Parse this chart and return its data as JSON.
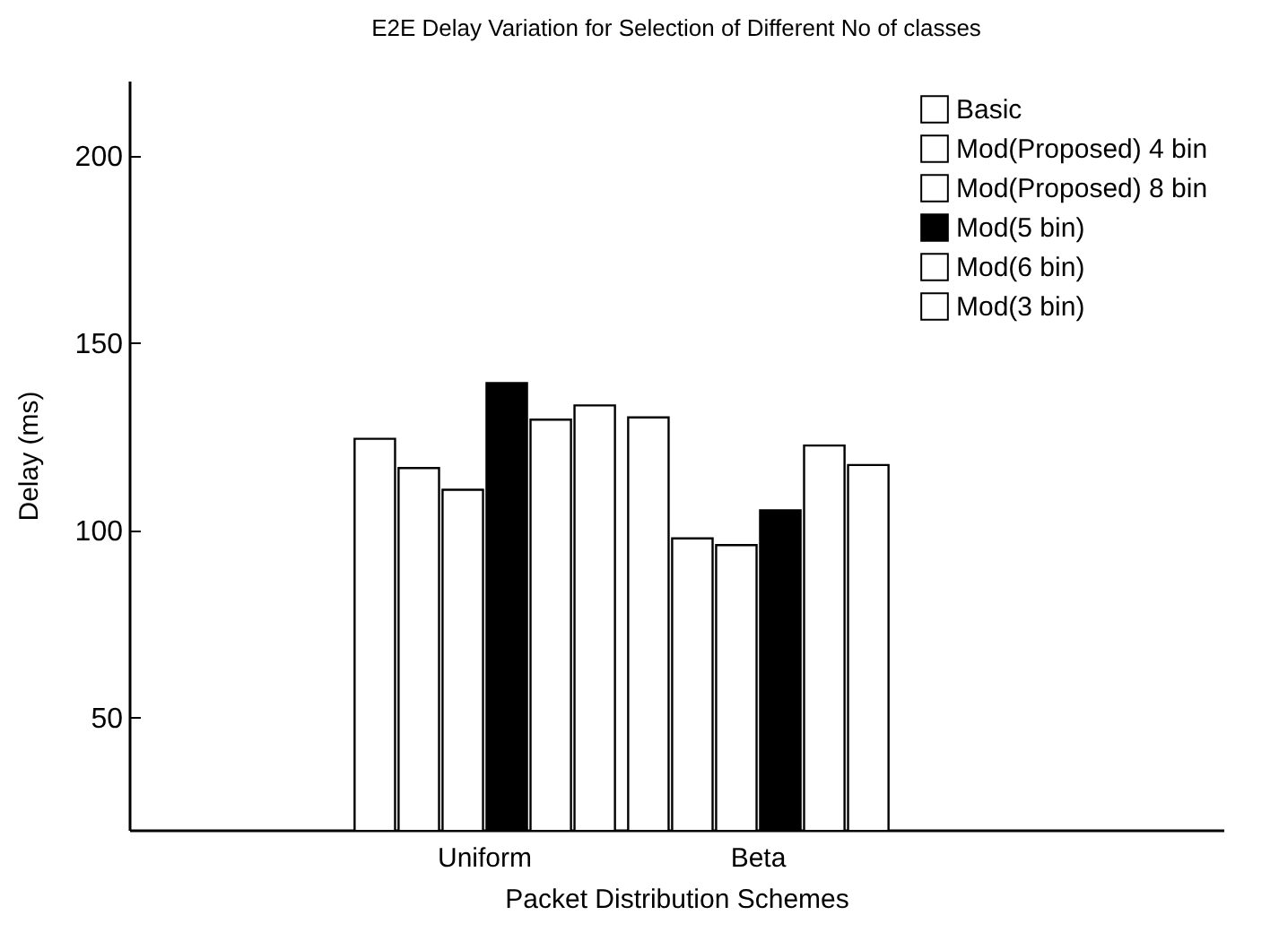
{
  "chart_data": {
    "type": "bar",
    "title": "E2E Delay Variation for Selection of Different No of classes",
    "xlabel": "Packet Distribution Schemes",
    "ylabel": "Delay (ms)",
    "categories": [
      "Uniform",
      "Beta"
    ],
    "series": [
      {
        "name": "Basic",
        "color": "#ffffff",
        "values": [
          124.4,
          130.1
        ]
      },
      {
        "name": "Mod(Proposed) 4 bin",
        "color": "#ffffff",
        "values": [
          116.6,
          97.8
        ]
      },
      {
        "name": "Mod(Proposed) 8 bin",
        "color": "#ffffff",
        "values": [
          110.8,
          96.0
        ]
      },
      {
        "name": "Mod(5 bin)",
        "color": "#000000",
        "values": [
          139.3,
          105.3
        ]
      },
      {
        "name": "Mod(6 bin)",
        "color": "#ffffff",
        "values": [
          129.5,
          122.6
        ]
      },
      {
        "name": "Mod(3 bin)",
        "color": "#ffffff",
        "values": [
          133.3,
          117.4
        ]
      }
    ],
    "ylim": [
      20,
      220
    ],
    "yticks": [
      50,
      100,
      150,
      200
    ],
    "grid": false,
    "legend": "top right"
  }
}
